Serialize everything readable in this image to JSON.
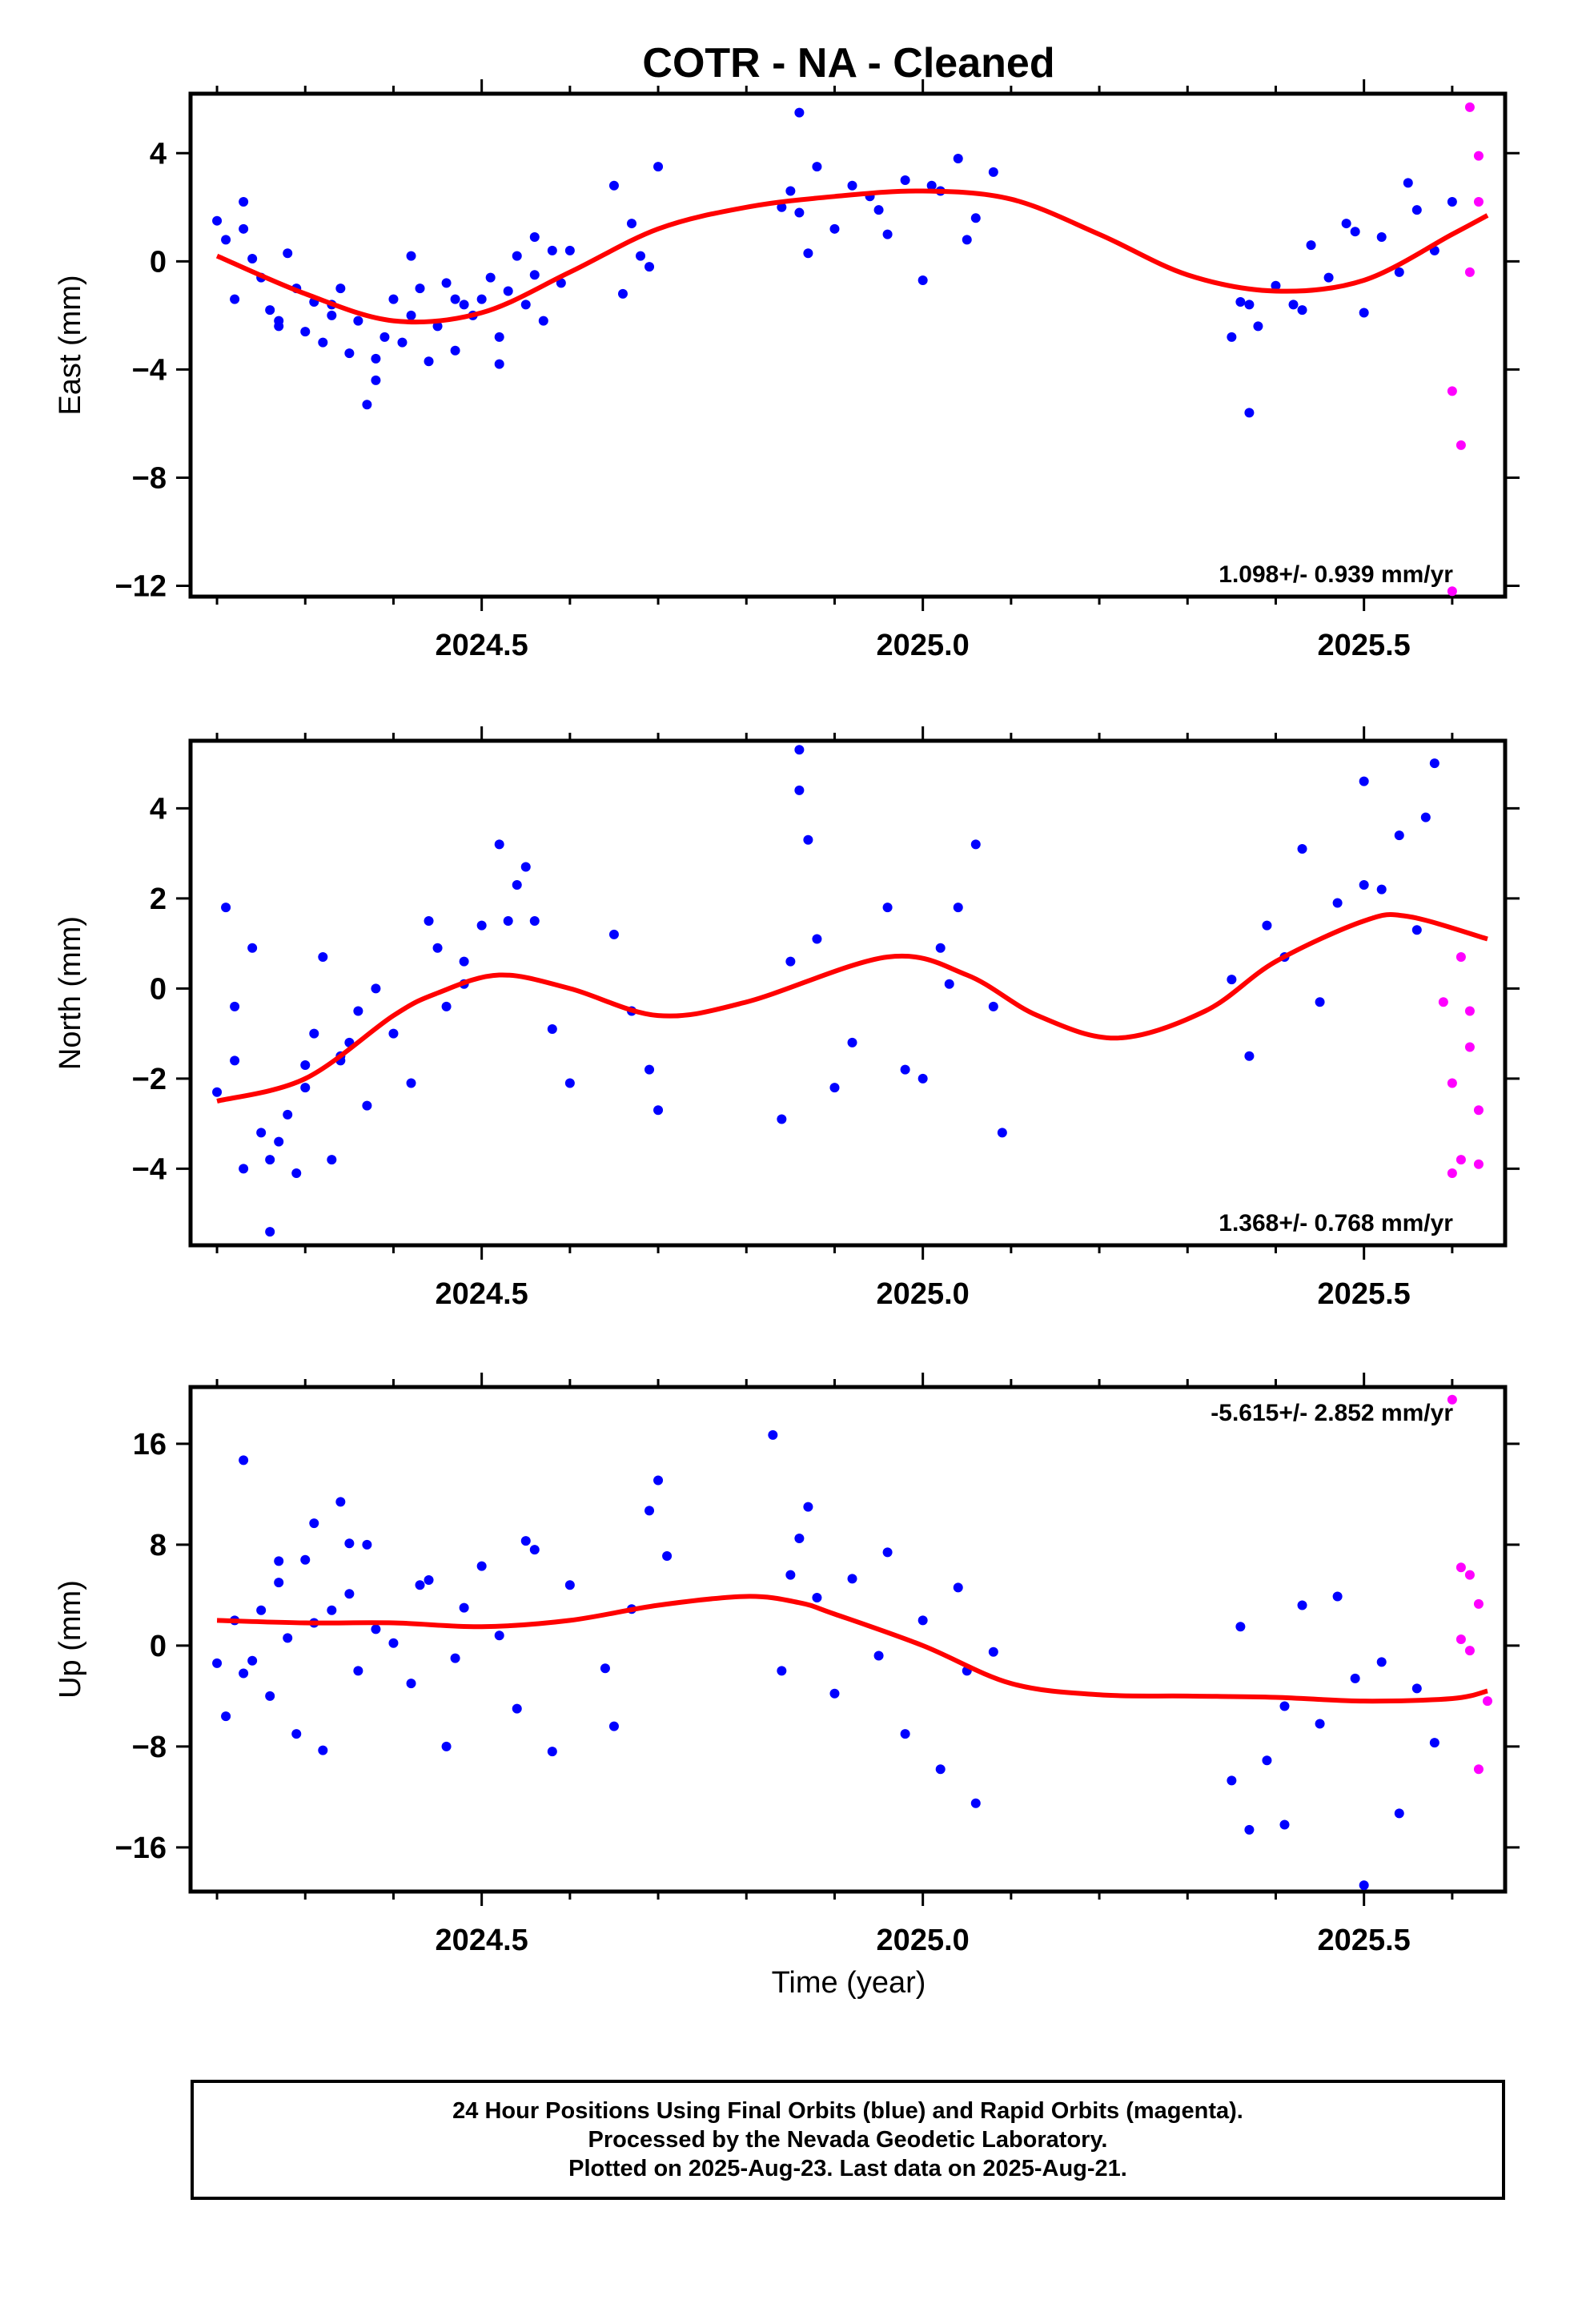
{
  "chart_data": {
    "title": "COTR  - NA - Cleaned",
    "xlabel": "Time (year)",
    "colors": {
      "final": "#0000ff",
      "rapid": "#ff00ff",
      "fit": "#ff0000",
      "frame": "#000000"
    },
    "xlim": [
      2024.17,
      2025.66
    ],
    "xticks": [
      "2024.5",
      "2025.0",
      "2025.5"
    ],
    "panels": [
      {
        "name": "east",
        "type": "scatter",
        "ylabel": "East (mm)",
        "ylim": [
          -12.4,
          6.2
        ],
        "yticks": [
          "4",
          "0",
          "−4",
          "−8",
          "−12"
        ],
        "rate": "1.098+/- 0.939 mm/yr",
        "trend": {
          "x": [
            2024.2,
            2024.3,
            2024.4,
            2024.5,
            2024.6,
            2024.7,
            2024.8,
            2024.9,
            2025.0,
            2025.1,
            2025.2,
            2025.3,
            2025.4,
            2025.5,
            2025.6,
            2025.64
          ],
          "y": [
            0.2,
            -1.2,
            -2.2,
            -1.9,
            -0.4,
            1.2,
            2.0,
            2.4,
            2.6,
            2.3,
            1.0,
            -0.5,
            -1.1,
            -0.7,
            1.0,
            1.7
          ]
        },
        "final": {
          "x": [
            2024.2,
            2024.21,
            2024.22,
            2024.23,
            2024.24,
            2024.25,
            2024.26,
            2024.27,
            2024.28,
            2024.29,
            2024.3,
            2024.31,
            2024.32,
            2024.33,
            2024.34,
            2024.35,
            2024.36,
            2024.37,
            2024.38,
            2024.39,
            2024.4,
            2024.41,
            2024.42,
            2024.43,
            2024.44,
            2024.45,
            2024.46,
            2024.47,
            2024.48,
            2024.49,
            2024.5,
            2024.51,
            2024.52,
            2024.53,
            2024.54,
            2024.55,
            2024.56,
            2024.57,
            2024.58,
            2024.59,
            2024.6,
            2024.65,
            2024.66,
            2024.67,
            2024.68,
            2024.69,
            2024.7,
            2024.84,
            2024.85,
            2024.86,
            2024.87,
            2024.88,
            2024.9,
            2024.92,
            2024.94,
            2024.96,
            2024.98,
            2025.0,
            2025.02,
            2025.04,
            2025.06,
            2025.08,
            2025.35,
            2025.36,
            2025.37,
            2025.38,
            2025.4,
            2025.42,
            2025.44,
            2025.46,
            2025.48,
            2025.5,
            2025.52,
            2025.54,
            2025.56,
            2025.58,
            2025.6,
            2024.23,
            2024.27,
            2024.33,
            2024.38,
            2024.42,
            2024.47,
            2024.52,
            2024.56,
            2024.86,
            2024.95,
            2025.01,
            2025.05,
            2025.37,
            2025.43,
            2025.49,
            2025.55
          ],
          "y": [
            1.5,
            0.8,
            -1.4,
            2.2,
            0.1,
            -0.6,
            -1.8,
            -2.2,
            0.3,
            -1.0,
            -2.6,
            -1.5,
            -3.0,
            -2.0,
            -1.0,
            -3.4,
            -2.2,
            -5.3,
            -3.6,
            -2.8,
            -1.4,
            -3.0,
            -2.0,
            -1.0,
            -3.7,
            -2.4,
            -0.8,
            -3.3,
            -1.6,
            -2.0,
            -1.4,
            -0.6,
            -2.8,
            -1.1,
            0.2,
            -1.6,
            -0.5,
            -2.2,
            0.4,
            -0.8,
            0.4,
            2.8,
            -1.2,
            1.4,
            0.2,
            -0.2,
            3.5,
            2.0,
            2.6,
            5.5,
            0.3,
            3.5,
            1.2,
            2.8,
            2.4,
            1.0,
            3.0,
            -0.7,
            2.6,
            3.8,
            1.6,
            3.3,
            -2.8,
            -1.5,
            -5.6,
            -2.4,
            -0.9,
            -1.6,
            0.6,
            -0.6,
            1.4,
            -1.9,
            0.9,
            -0.4,
            1.9,
            0.4,
            2.2,
            1.2,
            -2.4,
            -1.6,
            -4.4,
            0.2,
            -1.4,
            -3.8,
            0.9,
            1.8,
            1.9,
            2.8,
            0.8,
            -1.6,
            -1.8,
            1.1,
            2.9
          ]
        },
        "rapid": {
          "x": [
            2025.6,
            2025.61,
            2025.62,
            2025.63,
            2025.6,
            2025.62,
            2025.63
          ],
          "y": [
            -12.2,
            -6.8,
            5.7,
            3.9,
            -4.8,
            -0.4,
            2.2
          ]
        }
      },
      {
        "name": "north",
        "type": "scatter",
        "ylabel": "North (mm)",
        "ylim": [
          -5.7,
          5.5
        ],
        "yticks": [
          "4",
          "2",
          "0",
          "−2",
          "−4"
        ],
        "rate": "1.368+/- 0.768 mm/yr",
        "trend": {
          "x": [
            2024.2,
            2024.3,
            2024.4,
            2024.45,
            2024.52,
            2024.6,
            2024.7,
            2024.8,
            2024.96,
            2025.05,
            2025.13,
            2025.22,
            2025.32,
            2025.4,
            2025.5,
            2025.55,
            2025.64
          ],
          "y": [
            -2.5,
            -2.0,
            -0.6,
            -0.1,
            0.3,
            0.0,
            -0.6,
            -0.3,
            0.7,
            0.3,
            -0.6,
            -1.1,
            -0.5,
            0.6,
            1.5,
            1.6,
            1.1
          ]
        },
        "final": {
          "x": [
            2024.2,
            2024.21,
            2024.22,
            2024.23,
            2024.24,
            2024.25,
            2024.26,
            2024.27,
            2024.28,
            2024.29,
            2024.3,
            2024.31,
            2024.32,
            2024.33,
            2024.34,
            2024.35,
            2024.36,
            2024.37,
            2024.38,
            2024.4,
            2024.42,
            2024.44,
            2024.46,
            2024.48,
            2024.5,
            2024.52,
            2024.54,
            2024.56,
            2024.58,
            2024.6,
            2024.65,
            2024.67,
            2024.69,
            2024.7,
            2024.84,
            2024.85,
            2024.86,
            2024.87,
            2024.88,
            2024.9,
            2024.92,
            2024.96,
            2024.98,
            2025.0,
            2025.02,
            2025.04,
            2025.06,
            2025.09,
            2025.35,
            2025.37,
            2025.39,
            2025.41,
            2025.43,
            2025.45,
            2025.47,
            2025.5,
            2025.52,
            2025.54,
            2025.56,
            2025.58,
            2024.22,
            2024.26,
            2024.3,
            2024.34,
            2024.45,
            2024.48,
            2024.53,
            2024.55,
            2024.86,
            2025.03,
            2025.08,
            2025.5,
            2025.57
          ],
          "y": [
            -2.3,
            1.8,
            -0.4,
            -4.0,
            0.9,
            -3.2,
            -5.4,
            -3.4,
            -2.8,
            -4.1,
            -2.2,
            -1.0,
            0.7,
            -3.8,
            -1.6,
            -1.2,
            -0.5,
            -2.6,
            0.0,
            -1.0,
            -2.1,
            1.5,
            -0.4,
            0.6,
            1.4,
            3.2,
            2.3,
            1.5,
            -0.9,
            -2.1,
            1.2,
            -0.5,
            -1.8,
            -2.7,
            -2.9,
            0.6,
            5.3,
            3.3,
            1.1,
            -2.2,
            -1.2,
            1.8,
            -1.8,
            -2.0,
            0.9,
            1.8,
            3.2,
            -3.2,
            0.2,
            -1.5,
            1.4,
            0.7,
            3.1,
            -0.3,
            1.9,
            4.6,
            2.2,
            3.4,
            1.3,
            5.0,
            -1.6,
            -3.8,
            -1.7,
            -1.5,
            0.9,
            0.1,
            1.5,
            2.7,
            4.4,
            0.1,
            -0.4,
            2.3,
            3.8
          ],
          "final_note": ""
        },
        "rapid": {
          "x": [
            2025.59,
            2025.6,
            2025.61,
            2025.62,
            2025.63,
            2025.61,
            2025.62,
            2025.63,
            2025.6
          ],
          "y": [
            -0.3,
            -4.1,
            0.7,
            -0.5,
            -2.7,
            -3.8,
            -1.3,
            -3.9,
            -2.1
          ]
        }
      },
      {
        "name": "up",
        "type": "scatter",
        "ylabel": "Up (mm)",
        "ylim": [
          -19.5,
          20.5
        ],
        "yticks": [
          "16",
          "8",
          "0",
          "−8",
          "−16"
        ],
        "rate": "-5.615+/- 2.852 mm/yr",
        "trend": {
          "x": [
            2024.2,
            2024.3,
            2024.4,
            2024.5,
            2024.6,
            2024.7,
            2024.8,
            2024.86,
            2024.9,
            2025.0,
            2025.1,
            2025.2,
            2025.3,
            2025.4,
            2025.5,
            2025.6,
            2025.64
          ],
          "y": [
            2.0,
            1.8,
            1.8,
            1.5,
            2.0,
            3.2,
            3.9,
            3.4,
            2.5,
            0.0,
            -3.0,
            -3.9,
            -4.0,
            -4.1,
            -4.4,
            -4.2,
            -3.6
          ]
        },
        "final": {
          "x": [
            2024.2,
            2024.21,
            2024.22,
            2024.23,
            2024.24,
            2024.25,
            2024.26,
            2024.27,
            2024.28,
            2024.29,
            2024.3,
            2024.31,
            2024.32,
            2024.33,
            2024.34,
            2024.35,
            2024.36,
            2024.37,
            2024.38,
            2024.4,
            2024.42,
            2024.44,
            2024.46,
            2024.48,
            2024.5,
            2024.52,
            2024.54,
            2024.56,
            2024.58,
            2024.6,
            2024.65,
            2024.67,
            2024.69,
            2024.7,
            2024.84,
            2024.85,
            2024.86,
            2024.87,
            2024.88,
            2024.9,
            2024.92,
            2024.96,
            2024.98,
            2025.0,
            2025.02,
            2025.04,
            2025.06,
            2025.08,
            2025.35,
            2025.36,
            2025.37,
            2025.39,
            2025.41,
            2025.43,
            2025.45,
            2025.47,
            2025.5,
            2025.52,
            2025.54,
            2025.56,
            2025.58,
            2024.23,
            2024.27,
            2024.31,
            2024.35,
            2024.43,
            2024.47,
            2024.55,
            2024.64,
            2024.71,
            2024.83,
            2024.95,
            2025.05,
            2025.41,
            2025.49
          ],
          "y": [
            -1.4,
            -5.6,
            2.0,
            14.7,
            -1.2,
            2.8,
            -4.0,
            5.0,
            0.6,
            -7.0,
            6.8,
            9.7,
            -8.3,
            2.8,
            11.4,
            4.1,
            -2.0,
            8.0,
            1.3,
            0.2,
            -3.0,
            5.2,
            -8.0,
            3.0,
            6.3,
            0.8,
            -5.0,
            7.6,
            -8.4,
            4.8,
            -6.4,
            2.9,
            10.7,
            13.1,
            -2.0,
            5.6,
            8.5,
            11.0,
            3.8,
            -3.8,
            5.3,
            7.4,
            -7.0,
            2.0,
            -9.8,
            4.6,
            -12.5,
            -0.5,
            -10.7,
            1.5,
            -14.6,
            -9.1,
            -4.8,
            3.2,
            -6.2,
            3.9,
            -19.0,
            -1.3,
            -13.3,
            -3.4,
            -7.7,
            -2.2,
            6.7,
            1.8,
            8.1,
            4.8,
            -1.0,
            8.3,
            -1.8,
            7.1,
            16.7,
            -0.8,
            -2.0,
            -14.2,
            -2.6
          ],
          "final_note": ""
        },
        "rapid": {
          "x": [
            2025.6,
            2025.61,
            2025.62,
            2025.63,
            2025.62,
            2025.63,
            2025.61,
            2025.64
          ],
          "y": [
            19.5,
            6.2,
            5.6,
            3.3,
            -0.4,
            -9.8,
            0.5,
            -4.4
          ]
        }
      }
    ]
  },
  "footer": {
    "line1": "24 Hour Positions Using Final Orbits (blue) and Rapid Orbits (magenta).",
    "line2": "Processed by the Nevada Geodetic Laboratory.",
    "line3": "Plotted on 2025-Aug-23. Last data on 2025-Aug-21."
  }
}
